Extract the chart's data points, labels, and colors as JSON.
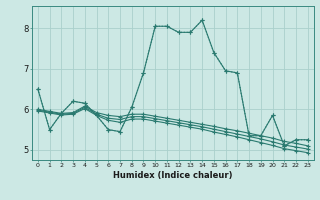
{
  "xlabel": "Humidex (Indice chaleur)",
  "bg_color": "#cce8e4",
  "grid_color": "#aad0cc",
  "line_color": "#2a7a70",
  "xlim": [
    -0.5,
    23.5
  ],
  "ylim": [
    4.75,
    8.55
  ],
  "yticks": [
    5,
    6,
    7,
    8
  ],
  "xticks": [
    0,
    1,
    2,
    3,
    4,
    5,
    6,
    7,
    8,
    9,
    10,
    11,
    12,
    13,
    14,
    15,
    16,
    17,
    18,
    19,
    20,
    21,
    22,
    23
  ],
  "line_dotted_y": [
    6.5,
    5.5,
    5.9,
    6.2,
    6.15,
    5.85,
    5.5,
    5.45,
    6.05,
    6.9,
    8.05,
    8.05,
    7.9,
    7.9,
    8.2,
    7.4,
    6.95,
    6.9,
    5.35,
    5.35,
    5.85,
    5.1,
    5.25,
    5.25
  ],
  "line_solid_peak_y": [
    6.5,
    5.5,
    5.9,
    6.2,
    6.15,
    5.85,
    5.5,
    5.45,
    6.05,
    6.9,
    8.05,
    8.05,
    7.9,
    7.9,
    8.2,
    7.4,
    6.95,
    6.9,
    5.35,
    5.35,
    5.85,
    5.1,
    5.25,
    5.25
  ],
  "line_flat1_y": [
    6.0,
    5.95,
    5.9,
    5.92,
    6.08,
    5.92,
    5.85,
    5.82,
    5.88,
    5.88,
    5.83,
    5.78,
    5.73,
    5.68,
    5.63,
    5.58,
    5.52,
    5.47,
    5.41,
    5.35,
    5.29,
    5.21,
    5.16,
    5.1
  ],
  "line_flat2_y": [
    5.98,
    5.93,
    5.88,
    5.9,
    6.05,
    5.88,
    5.78,
    5.75,
    5.82,
    5.82,
    5.77,
    5.72,
    5.67,
    5.62,
    5.57,
    5.51,
    5.45,
    5.39,
    5.33,
    5.27,
    5.2,
    5.12,
    5.07,
    5.02
  ],
  "line_flat3_y": [
    5.96,
    5.91,
    5.86,
    5.88,
    6.02,
    5.85,
    5.73,
    5.68,
    5.76,
    5.76,
    5.71,
    5.66,
    5.61,
    5.56,
    5.51,
    5.44,
    5.38,
    5.32,
    5.25,
    5.18,
    5.11,
    5.03,
    4.98,
    4.93
  ]
}
